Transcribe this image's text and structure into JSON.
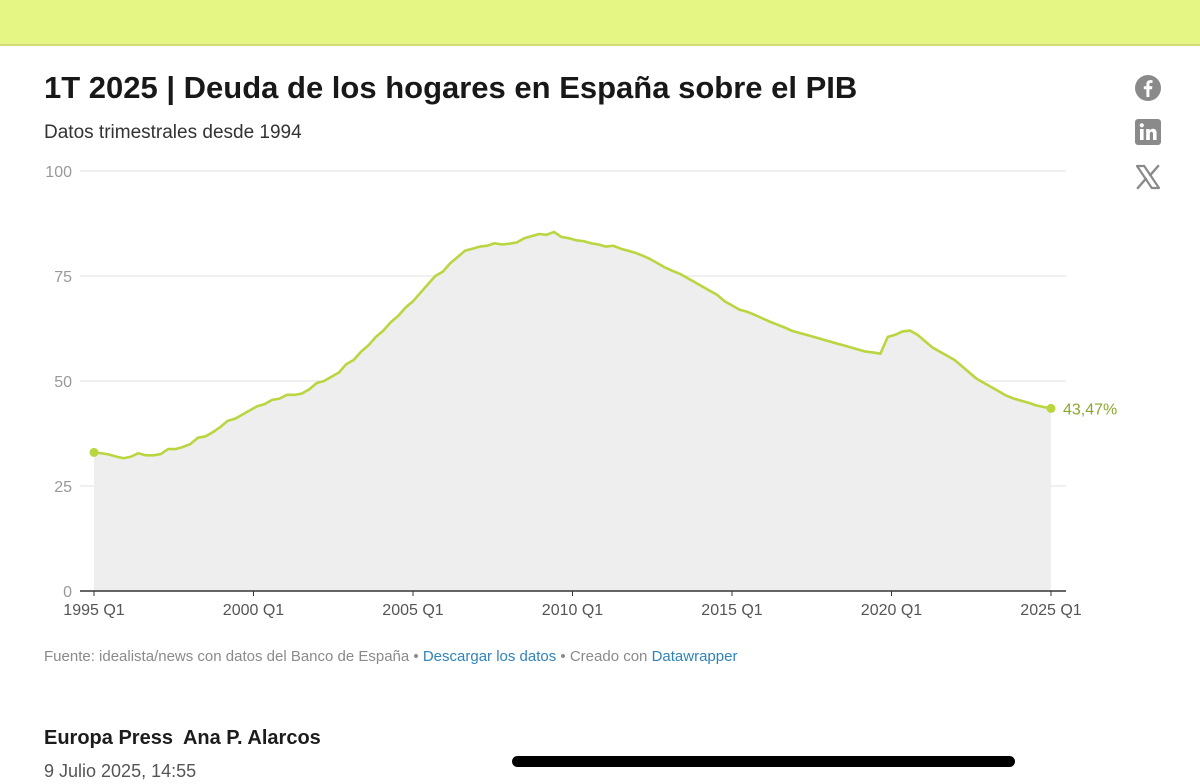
{
  "chart_data": {
    "type": "area",
    "title": "1T 2025 | Deuda de los hogares en España sobre el PIB",
    "subtitle": "Datos trimestrales desde 1994",
    "x_start": "1995 Q1",
    "x_end": "2025 Q1",
    "x_ticks": [
      "1995 Q1",
      "2000 Q1",
      "2005 Q1",
      "2010 Q1",
      "2015 Q1",
      "2020 Q1",
      "2025 Q1"
    ],
    "y_ticks": [
      "100",
      "75",
      "50",
      "25",
      "0"
    ],
    "ylim": [
      0,
      100
    ],
    "grid": true,
    "series": [
      {
        "values": [
          33.0,
          32.8,
          32.5,
          32.0,
          31.6,
          32.0,
          32.8,
          32.3,
          32.3,
          32.6,
          33.8,
          33.8,
          34.3,
          35.0,
          36.5,
          36.8,
          37.8,
          39.0,
          40.5,
          41.0,
          42.0,
          43.0,
          44.0,
          44.5,
          45.5,
          45.8,
          46.7,
          46.7,
          47.0,
          48.0,
          49.5,
          50.0,
          51.0,
          52.0,
          54.0,
          55.0,
          57.0,
          58.5,
          60.5,
          62.0,
          64.0,
          65.5,
          67.5,
          69.0,
          71.0,
          73.0,
          75.0,
          76.0,
          78.0,
          79.5,
          81.0,
          81.5,
          82.0,
          82.2,
          82.8,
          82.5,
          82.7,
          83.0,
          84.0,
          84.5,
          85.0,
          84.8,
          85.5,
          84.3,
          84.0,
          83.5,
          83.3,
          82.8,
          82.5,
          82.0,
          82.2,
          81.5,
          81.0,
          80.5,
          79.8,
          79.0,
          78.0,
          77.0,
          76.2,
          75.5,
          74.5,
          73.5,
          72.5,
          71.5,
          70.5,
          69.0,
          68.0,
          67.0,
          66.5,
          65.8,
          65.0,
          64.2,
          63.5,
          62.8,
          62.0,
          61.5,
          61.0,
          60.5,
          60.0,
          59.5,
          59.0,
          58.5,
          58.0,
          57.5,
          57.0,
          56.8,
          56.5,
          60.5,
          61.0,
          61.8,
          62.0,
          61.0,
          59.5,
          58.0,
          57.0,
          56.0,
          55.0,
          53.5,
          52.0,
          50.5,
          49.5,
          48.5,
          47.5,
          46.5,
          45.8,
          45.3,
          44.8,
          44.2,
          43.8,
          43.47
        ]
      }
    ],
    "end_label": "43,47%",
    "colors": {
      "line": "#b9d640",
      "fill": "#eeeeee",
      "grid": "#e2e2e2",
      "axis": "#333333",
      "tick_text": "#999999",
      "end_label": "#8aa82e"
    }
  },
  "notes": {
    "source": "Fuente: idealista/news con datos del Banco de España",
    "sep": " • ",
    "download": "Descargar los datos",
    "created": "Creado con ",
    "tool": "Datawrapper"
  },
  "byline": {
    "publisher": "Europa Press",
    "author": "Ana P. Alarcos"
  },
  "date": "9 Julio 2025, 14:55",
  "share_icons": [
    "facebook-icon",
    "linkedin-icon",
    "x-icon"
  ]
}
